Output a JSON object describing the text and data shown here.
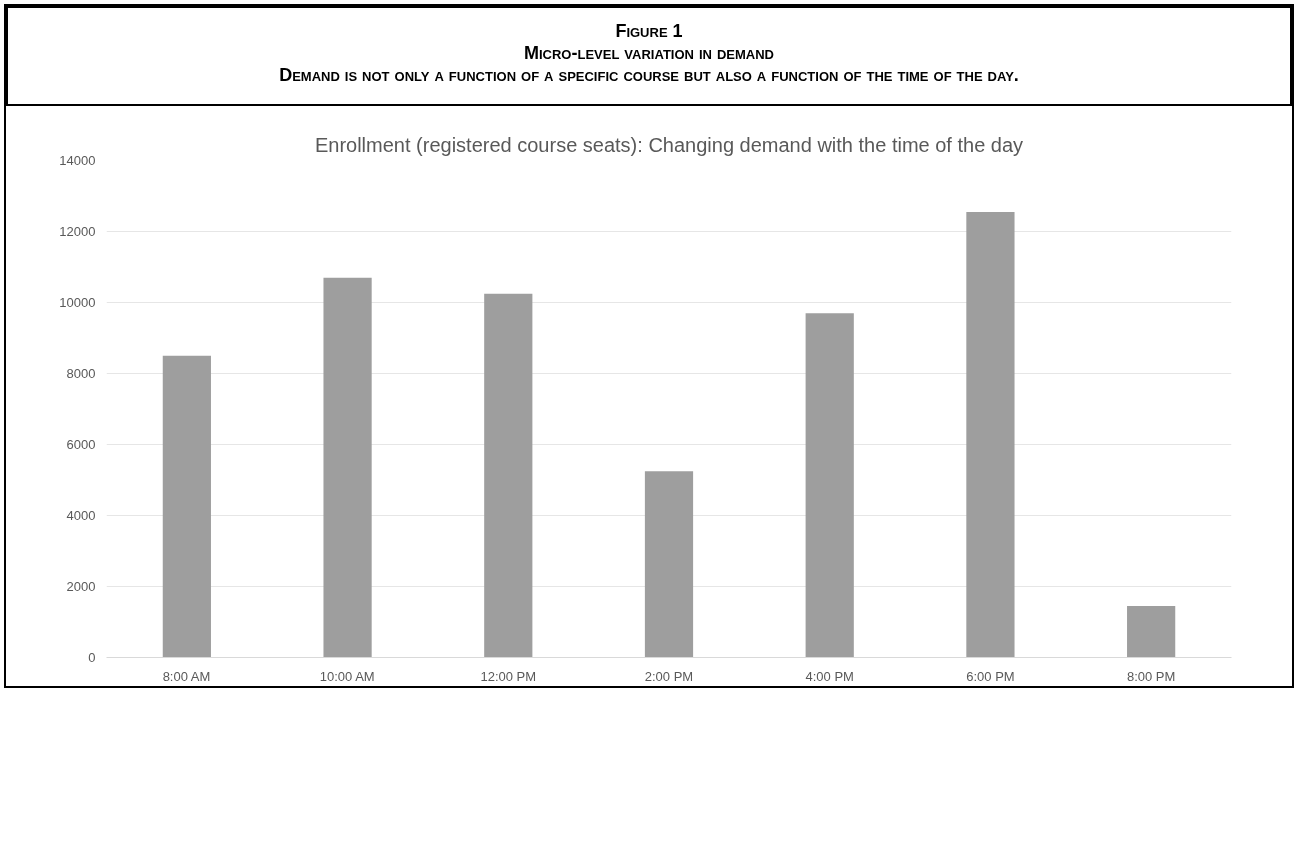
{
  "chart_data": {
    "type": "bar",
    "title": "Enrollment (registered course seats): Changing demand with the time of the day",
    "annotations": [
      "Figure 1",
      "Micro-level variation in demand",
      "Demand is not only a function of a specific course but also a function of the time of the day."
    ],
    "categories": [
      "8:00 AM",
      "10:00 AM",
      "12:00 PM",
      "2:00 PM",
      "4:00 PM",
      "6:00 PM",
      "8:00 PM"
    ],
    "values": [
      8500,
      10700,
      10250,
      5250,
      9700,
      12550,
      1450
    ],
    "color": "#9e9e9e",
    "ylim": [
      0,
      14000
    ],
    "yticks": [
      0,
      2000,
      4000,
      6000,
      8000,
      10000,
      12000,
      14000
    ],
    "grid": "y"
  }
}
